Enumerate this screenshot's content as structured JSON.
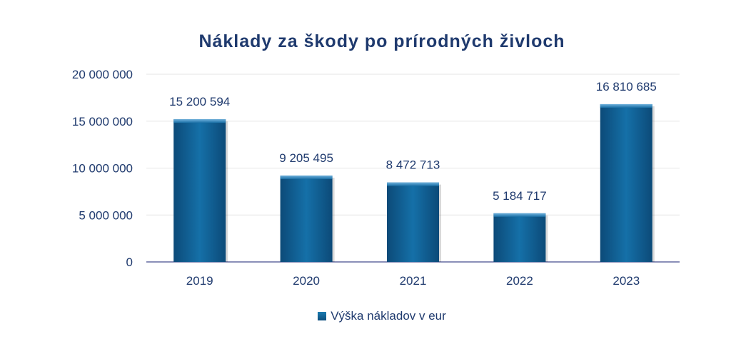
{
  "chart_data": {
    "type": "bar",
    "title": "Náklady za škody po prírodných živloch",
    "categories": [
      "2019",
      "2020",
      "2021",
      "2022",
      "2023"
    ],
    "series": [
      {
        "name": "Výška nákladov v eur",
        "values": [
          15200594,
          9205495,
          8472713,
          5184717,
          16810685
        ],
        "labels": [
          "15 200 594",
          "9 205 495",
          "8 472 713",
          "5 184 717",
          "16 810 685"
        ]
      }
    ],
    "ylim": [
      0,
      20000000
    ],
    "yticks": [
      0,
      5000000,
      10000000,
      15000000,
      20000000
    ],
    "ytick_labels": [
      "0",
      "5 000 000",
      "10 000 000",
      "15 000 000",
      "20 000 000"
    ],
    "grid": true,
    "legend": "bottom",
    "colors": {
      "bar": "#0f5a8c",
      "text": "#1f3a6e",
      "grid": "#e6e6e6",
      "axis": "#8a8fb8"
    }
  }
}
